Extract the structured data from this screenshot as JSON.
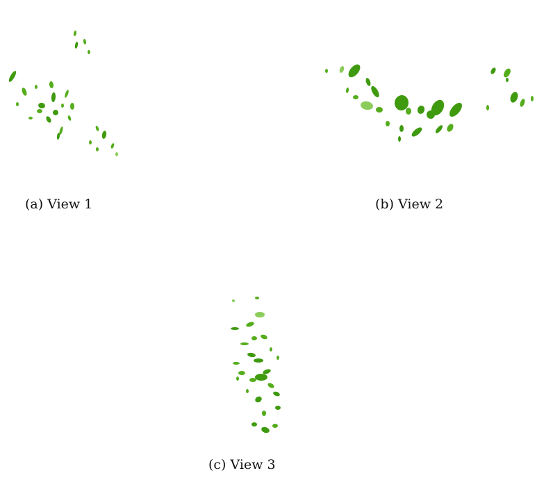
{
  "figure": {
    "panels": [
      {
        "id": "a",
        "caption": "(a) View 1",
        "image": "green-leaf-cluster-view-1"
      },
      {
        "id": "b",
        "caption": "(b) View 2",
        "image": "green-leaf-cluster-view-2"
      },
      {
        "id": "c",
        "caption": "(c) View 3",
        "image": "green-leaf-cluster-view-3"
      }
    ],
    "colors": {
      "leaf_dark": "#3f9a0f",
      "leaf_mid": "#55ad1c",
      "leaf_light": "#8ccc5a",
      "background": "#ffffff"
    }
  }
}
